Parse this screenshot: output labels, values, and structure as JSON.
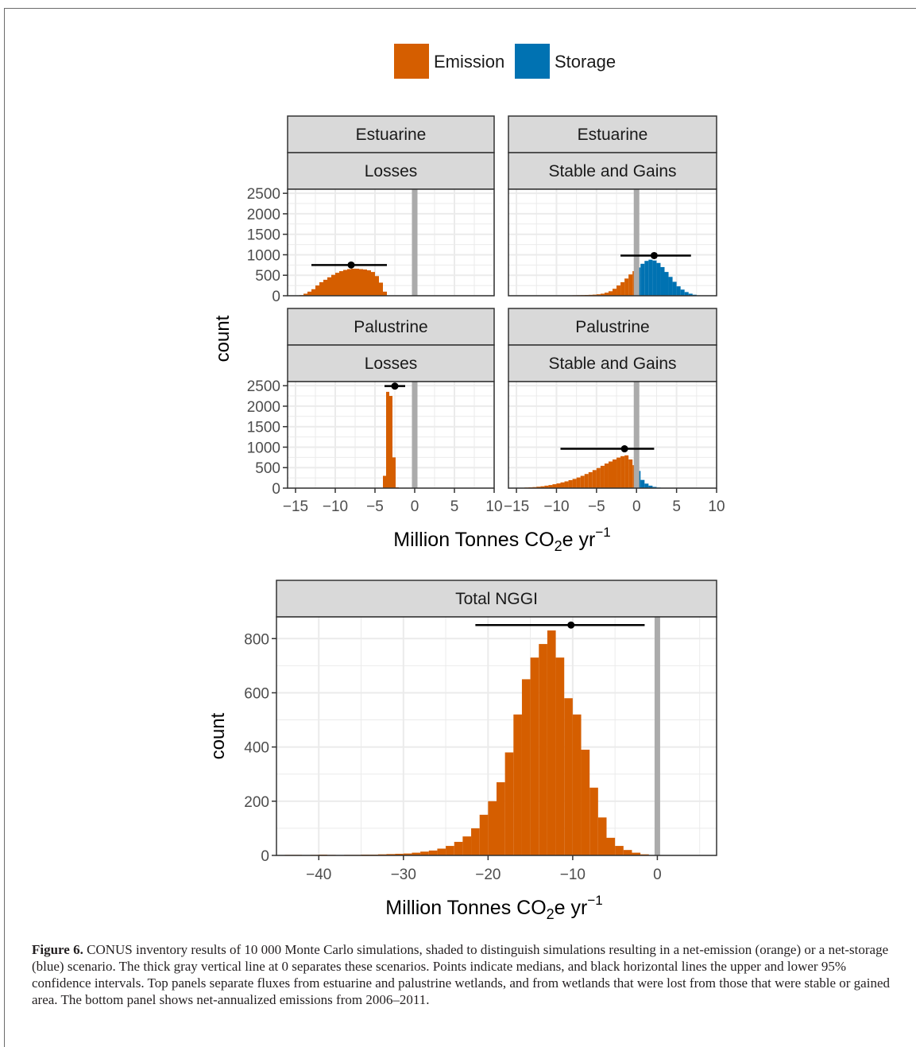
{
  "legend": {
    "items": [
      {
        "label": "Emission",
        "color": "#d55e00"
      },
      {
        "label": "Storage",
        "color": "#0072b2"
      }
    ]
  },
  "colors": {
    "emission": "#d55e00",
    "storage": "#0072b2",
    "zero_line": "#ababab",
    "strip": "#d9d9d9",
    "grid": "#ebebeb"
  },
  "chart_data": [
    {
      "type": "histogram",
      "layout": "2x2 facet grid",
      "facets": [
        {
          "row": "Estuarine",
          "col": "Losses"
        },
        {
          "row": "Estuarine",
          "col": "Stable and Gains"
        },
        {
          "row": "Palustrine",
          "col": "Losses"
        },
        {
          "row": "Palustrine",
          "col": "Stable and Gains"
        }
      ],
      "ylabel": "count",
      "xlabel": "Million Tonnes CO",
      "xlabel_sub": "2",
      "xlabel_tail": "e yr",
      "xlabel_sup": "−1",
      "xlim": [
        -16,
        10
      ],
      "ylim": [
        0,
        2600
      ],
      "xticks": [
        -15,
        -10,
        -5,
        0,
        5,
        10
      ],
      "xtick_labels": [
        "−15",
        "−10",
        "−5",
        "0",
        "5",
        "10"
      ],
      "yticks": [
        0,
        500,
        1000,
        1500,
        2000,
        2500
      ],
      "ytick_labels": [
        "0",
        "500",
        "1000",
        "1500",
        "2000",
        "2500"
      ],
      "bin_width": 0.5,
      "panels": [
        {
          "name": "Estuarine Losses",
          "bins_start": -14.5,
          "counts": [
            15,
            50,
            100,
            160,
            250,
            330,
            390,
            450,
            510,
            560,
            600,
            630,
            650,
            660,
            660,
            650,
            640,
            620,
            580,
            480,
            320,
            100
          ],
          "median": -8.0,
          "median_count": 750,
          "ci": [
            -13.0,
            -3.5
          ]
        },
        {
          "name": "Estuarine Stable and Gains",
          "bins_start": -12.0,
          "counts": [
            3,
            4,
            5,
            6,
            7,
            8,
            9,
            10,
            12,
            14,
            16,
            19,
            22,
            27,
            35,
            50,
            75,
            110,
            170,
            250,
            330,
            420,
            520,
            600,
            690,
            780,
            850,
            880,
            860,
            800,
            700,
            580,
            460,
            340,
            230,
            150,
            90,
            50,
            25,
            10,
            4
          ],
          "median": 2.2,
          "median_count": 980,
          "ci": [
            -2.0,
            6.8
          ]
        },
        {
          "name": "Palustrine Losses",
          "bins_start": -4.0,
          "counts": [
            300,
            2350,
            2250,
            750,
            20
          ],
          "median": -2.5,
          "median_count": 2490,
          "ci": [
            -3.8,
            -1.2
          ],
          "bin_width_override": 0.4
        },
        {
          "name": "Palustrine Stable and Gains",
          "bins_start": -15.0,
          "counts": [
            5,
            10,
            15,
            20,
            25,
            35,
            45,
            60,
            75,
            95,
            115,
            140,
            165,
            195,
            225,
            260,
            300,
            345,
            390,
            440,
            490,
            545,
            600,
            650,
            700,
            745,
            780,
            800,
            700,
            560,
            420,
            200,
            110,
            60,
            30,
            15,
            8
          ],
          "median": -1.5,
          "median_count": 960,
          "ci": [
            -9.5,
            2.2
          ]
        }
      ],
      "zero_line_x": 0
    },
    {
      "type": "histogram",
      "strip": "Total NGGI",
      "ylabel": "count",
      "xlabel": "Million Tonnes CO",
      "xlabel_sub": "2",
      "xlabel_tail": "e yr",
      "xlabel_sup": "−1",
      "xlim": [
        -45,
        7
      ],
      "ylim": [
        0,
        880
      ],
      "xticks": [
        -40,
        -30,
        -20,
        -10,
        0
      ],
      "xtick_labels": [
        "−40",
        "−30",
        "−20",
        "−10",
        "0"
      ],
      "yticks": [
        0,
        200,
        400,
        600,
        800
      ],
      "ytick_labels": [
        "0",
        "200",
        "400",
        "600",
        "800"
      ],
      "bin_width": 1,
      "bins_start": -44,
      "counts": [
        2,
        2,
        1,
        2,
        3,
        2,
        1,
        2,
        2,
        3,
        3,
        4,
        5,
        6,
        7,
        10,
        14,
        18,
        25,
        35,
        50,
        70,
        100,
        150,
        200,
        270,
        380,
        520,
        650,
        730,
        780,
        830,
        730,
        580,
        520,
        390,
        250,
        140,
        65,
        35,
        20,
        10,
        4,
        1
      ],
      "median": -10.2,
      "median_count": 850,
      "ci": [
        -21.5,
        -1.5
      ],
      "zero_line_x": 0
    }
  ],
  "caption": {
    "label": "Figure 6.",
    "text": " CONUS inventory results of 10 000 Monte Carlo simulations, shaded to distinguish simulations resulting in a net-emission (orange) or a net-storage (blue) scenario. The thick gray vertical line at 0 separates these scenarios. Points indicate medians, and black horizontal lines the upper and lower 95% confidence intervals. Top panels separate fluxes from estuarine and palustrine wetlands, and from wetlands that were lost from those that were stable or gained area. The bottom panel shows net-annualized emissions from 2006–2011."
  }
}
